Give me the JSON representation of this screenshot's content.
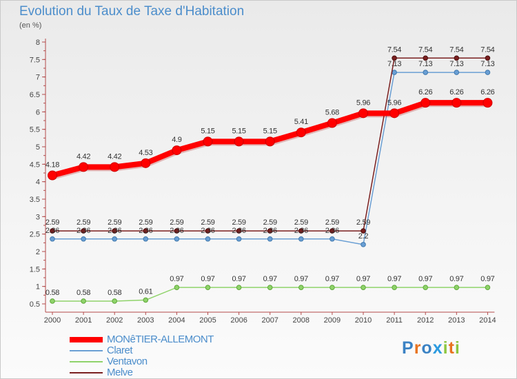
{
  "header": {
    "title": "Evolution du Taux de Taxe d'Habitation",
    "subtitle": "(en %)"
  },
  "legend": {
    "items": [
      {
        "label": "MONêTIER-ALLEMONT",
        "color": "#ff0000"
      },
      {
        "label": "Claret",
        "color": "#6a9fd4"
      },
      {
        "label": "Ventavon",
        "color": "#8fd36a"
      },
      {
        "label": "Melve",
        "color": "#7a1f1f"
      }
    ]
  },
  "logo": {
    "letters": [
      "P",
      "r",
      "o",
      "x",
      "i",
      "t",
      "i"
    ],
    "colors": [
      "#3b82c4",
      "#e8731f",
      "#3b82c4",
      "#2c9be0",
      "#8cc63f",
      "#e8731f",
      "#8cc63f"
    ]
  },
  "chart_data": {
    "type": "line",
    "categories": [
      "2000",
      "2001",
      "2002",
      "2003",
      "2004",
      "2005",
      "2006",
      "2007",
      "2008",
      "2009",
      "2010",
      "2011",
      "2012",
      "2013",
      "2014"
    ],
    "y_ticks": [
      "0.5",
      "1",
      "1.5",
      "2",
      "2.5",
      "3",
      "3.5",
      "4",
      "4.5",
      "5",
      "5.5",
      "6",
      "6.5",
      "7",
      "7.5",
      "8"
    ],
    "ylim": [
      0.5,
      8
    ],
    "grid": false,
    "legend_position": "bottom-left",
    "series": [
      {
        "name": "MONêTIER-ALLEMONT",
        "color": "#ff0000",
        "values": [
          4.18,
          4.42,
          4.42,
          4.53,
          4.9,
          5.15,
          5.15,
          5.15,
          5.41,
          5.68,
          5.96,
          5.96,
          6.26,
          6.26,
          6.26
        ],
        "labels": [
          "4.18",
          "4.42",
          "4.42",
          "4.53",
          "4.9",
          "5.15",
          "5.15",
          "5.15",
          "5.41",
          "5.68",
          "5.96",
          "5.96",
          "6.26",
          "6.26",
          "6.26"
        ]
      },
      {
        "name": "Claret",
        "color": "#6a9fd4",
        "values": [
          2.36,
          2.36,
          2.36,
          2.36,
          2.36,
          2.36,
          2.36,
          2.36,
          2.36,
          2.36,
          2.2,
          7.13,
          7.13,
          7.13,
          7.13
        ],
        "labels": [
          "2.36",
          "2.36",
          "2.36",
          "2.36",
          "2.36",
          "2.36",
          "2.36",
          "2.36",
          "2.36",
          "2.36",
          "2.2",
          "7.13",
          "7.13",
          "7.13",
          "7.13"
        ]
      },
      {
        "name": "Ventavon",
        "color": "#8fd36a",
        "values": [
          0.58,
          0.58,
          0.58,
          0.61,
          0.97,
          0.97,
          0.97,
          0.97,
          0.97,
          0.97,
          0.97,
          0.97,
          0.97,
          0.97,
          0.97
        ],
        "labels": [
          "0.58",
          "0.58",
          "0.58",
          "0.61",
          "0.97",
          "0.97",
          "0.97",
          "0.97",
          "0.97",
          "0.97",
          "0.97",
          "0.97",
          "0.97",
          "0.97",
          "0.97"
        ]
      },
      {
        "name": "Melve",
        "color": "#7a1f1f",
        "values": [
          2.59,
          2.59,
          2.59,
          2.59,
          2.59,
          2.59,
          2.59,
          2.59,
          2.59,
          2.59,
          2.59,
          7.54,
          7.54,
          7.54,
          7.54
        ],
        "labels": [
          "2.59",
          "2.59",
          "2.59",
          "2.59",
          "2.59",
          "2.59",
          "2.59",
          "2.59",
          "2.59",
          "2.59",
          "2.59",
          "7.54",
          "7.54",
          "7.54",
          "7.54"
        ]
      }
    ]
  }
}
